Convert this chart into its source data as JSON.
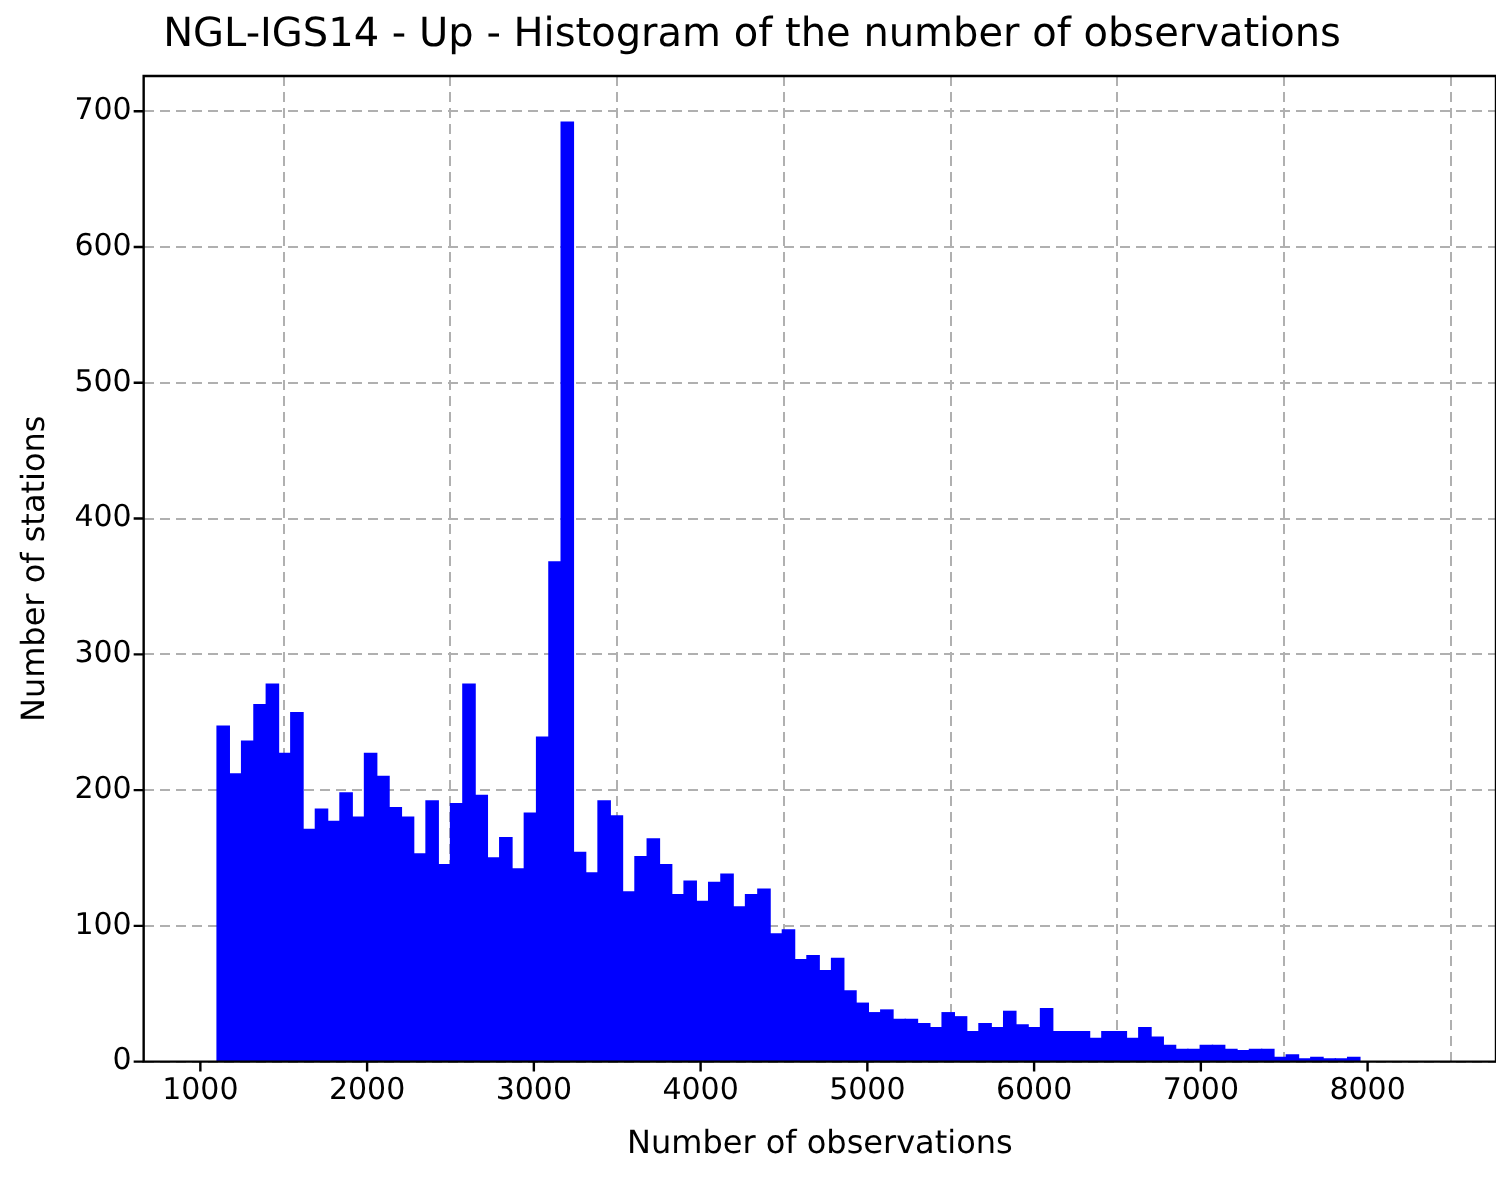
{
  "chart_data": {
    "type": "histogram",
    "title": "NGL-IGS14 - Up - Histogram of the number of observations",
    "xlabel": "Number of observations",
    "ylabel": "Number of stations",
    "bins": [
      1100,
      1174,
      1247,
      1321,
      1395,
      1469,
      1542,
      1616,
      1690,
      1763,
      1837,
      1911,
      1984,
      2058,
      2132,
      2206,
      2279,
      2353,
      2427,
      2500,
      2574,
      2648,
      2721,
      2795,
      2869,
      2943,
      3016,
      3090,
      3164,
      3237,
      3311,
      3385,
      3458,
      3532,
      3606,
      3680,
      3753,
      3827,
      3901,
      3974,
      4048,
      4122,
      4195,
      4269,
      4343,
      4417,
      4490,
      4564,
      4638,
      4711,
      4785,
      4859,
      4932,
      5006,
      5080,
      5154,
      5227,
      5301,
      5375,
      5448,
      5522,
      5596,
      5669,
      5743,
      5817,
      5891,
      5964,
      6038,
      6112,
      6185,
      6259,
      6333,
      6406,
      6480,
      6554,
      6628,
      6701,
      6775,
      6849,
      6922,
      6996,
      7070,
      7143,
      7217,
      7291,
      7365,
      7438,
      7512,
      7586,
      7659,
      7733,
      7807,
      7880,
      7954
    ],
    "values": [
      247,
      212,
      236,
      263,
      278,
      227,
      257,
      171,
      186,
      177,
      198,
      180,
      227,
      210,
      187,
      180,
      153,
      192,
      145,
      190,
      278,
      196,
      150,
      165,
      142,
      183,
      239,
      368,
      692,
      154,
      139,
      192,
      181,
      125,
      151,
      164,
      145,
      123,
      133,
      118,
      132,
      138,
      114,
      123,
      127,
      94,
      97,
      75,
      78,
      67,
      76,
      52,
      43,
      36,
      38,
      31,
      31,
      28,
      25,
      36,
      33,
      22,
      28,
      25,
      37,
      27,
      25,
      39,
      22,
      22,
      22,
      17,
      22,
      22,
      17,
      25,
      18,
      12,
      9,
      9,
      12,
      12,
      9,
      8,
      9,
      9,
      3,
      5,
      2,
      3,
      2,
      2,
      3
    ],
    "color": "#0000ff",
    "xlim": [
      660,
      8770
    ],
    "xticks": [
      1000,
      2000,
      3000,
      4000,
      5000,
      6000,
      7000,
      8000
    ],
    "ylim": [
      0,
      726
    ],
    "yticks": [
      0,
      100,
      200,
      300,
      400,
      500,
      600,
      700
    ],
    "grid": true,
    "legend": false
  }
}
